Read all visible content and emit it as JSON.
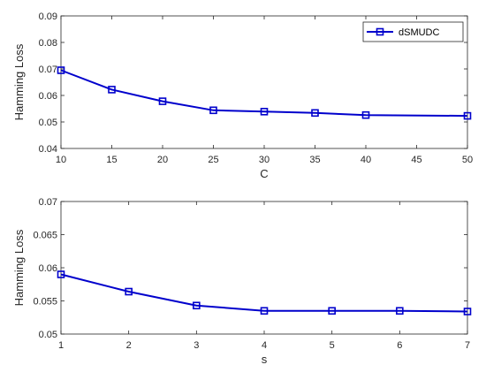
{
  "colors": {
    "series": "#0000cc",
    "axis": "#262626",
    "background": "#ffffff"
  },
  "chart_data": [
    {
      "type": "line",
      "title": "",
      "xlabel": "C",
      "ylabel": "Hamming Loss",
      "xlim": [
        10,
        50
      ],
      "ylim": [
        0.04,
        0.09
      ],
      "xticks": [
        10,
        15,
        20,
        25,
        30,
        35,
        40,
        45,
        50
      ],
      "yticks": [
        0.04,
        0.05,
        0.06,
        0.07,
        0.08,
        0.09
      ],
      "xtick_labels": [
        "10",
        "15",
        "20",
        "25",
        "30",
        "35",
        "40",
        "45",
        "50"
      ],
      "ytick_labels": [
        "0.04",
        "0.05",
        "0.06",
        "0.07",
        "0.08",
        "0.09"
      ],
      "grid": false,
      "legend": {
        "show": true,
        "position": "top-right"
      },
      "series": [
        {
          "name": "dSMUDC",
          "marker": "square",
          "x": [
            10,
            15,
            20,
            25,
            30,
            35,
            40,
            50
          ],
          "y": [
            0.0695,
            0.0622,
            0.0578,
            0.0544,
            0.0539,
            0.0534,
            0.0526,
            0.0523
          ]
        }
      ]
    },
    {
      "type": "line",
      "title": "",
      "xlabel": "s",
      "ylabel": "Hamming Loss",
      "xlim": [
        1,
        7
      ],
      "ylim": [
        0.05,
        0.07
      ],
      "xticks": [
        1,
        2,
        3,
        4,
        5,
        6,
        7
      ],
      "yticks": [
        0.05,
        0.055,
        0.06,
        0.065,
        0.07
      ],
      "xtick_labels": [
        "1",
        "2",
        "3",
        "4",
        "5",
        "6",
        "7"
      ],
      "ytick_labels": [
        "0.05",
        "0.055",
        "0.06",
        "0.065",
        "0.07"
      ],
      "grid": false,
      "legend": {
        "show": false
      },
      "series": [
        {
          "name": "",
          "marker": "square",
          "x": [
            1,
            2,
            3,
            4,
            5,
            6,
            7
          ],
          "y": [
            0.059,
            0.0564,
            0.0543,
            0.0535,
            0.0535,
            0.0535,
            0.0534
          ]
        }
      ]
    }
  ]
}
